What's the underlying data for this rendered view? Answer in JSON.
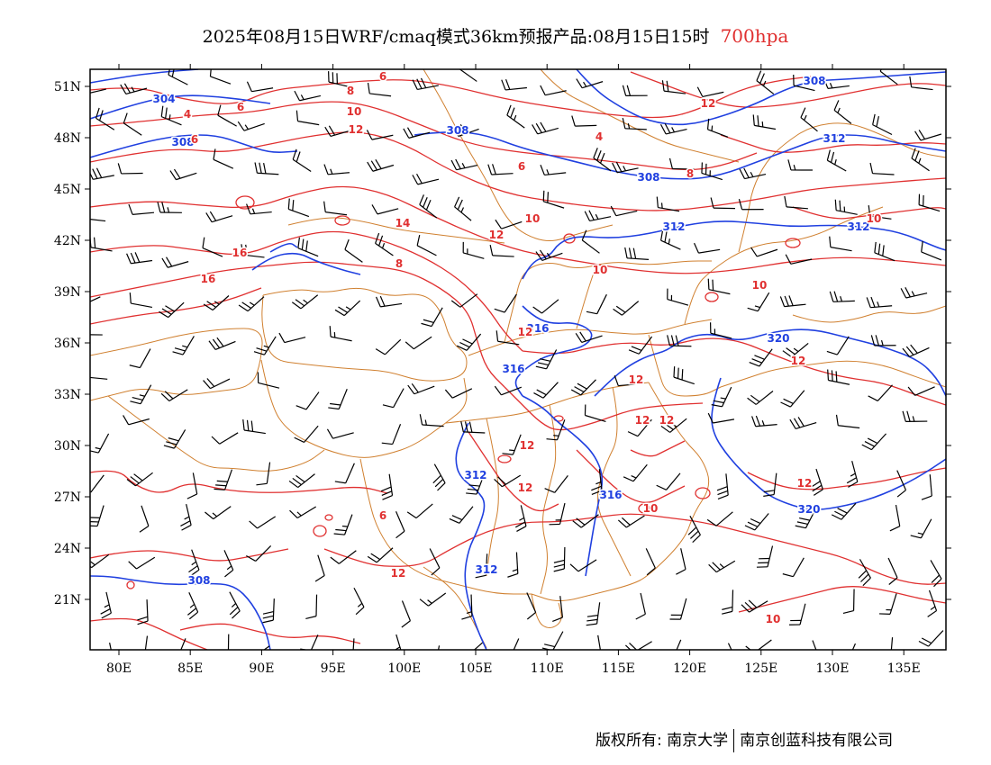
{
  "header": {
    "title": "2025年08月15日WRF/cmaq模式36km预报产品:08月15日15时",
    "level": "700hpa"
  },
  "axes": {
    "lat_labels": [
      "51N",
      "48N",
      "45N",
      "42N",
      "39N",
      "36N",
      "33N",
      "30N",
      "27N",
      "24N",
      "21N"
    ],
    "lon_labels": [
      "80E",
      "85E",
      "90E",
      "95E",
      "100E",
      "105E",
      "110E",
      "115E",
      "120E",
      "125E",
      "130E",
      "135E"
    ]
  },
  "colors": {
    "height_contour": "#2040e0",
    "temperature_contour": "#e03030",
    "boundary": "#d08030",
    "wind_barb": "#000000"
  },
  "height_labels": [
    "304",
    "308",
    "308",
    "308",
    "308",
    "312",
    "312",
    "312",
    "316",
    "316",
    "312",
    "312",
    "316",
    "320",
    "320",
    "308"
  ],
  "temperature_labels": [
    "6",
    "4",
    "6",
    "8",
    "10",
    "12",
    "14",
    "16",
    "16",
    "8",
    "6",
    "4",
    "6",
    "8",
    "10",
    "12",
    "10",
    "10",
    "12",
    "12",
    "12",
    "12",
    "12",
    "12",
    "12",
    "12",
    "10",
    "10",
    "12",
    "6",
    "10",
    "12"
  ],
  "footer": {
    "left": "版权所有: 南京大学",
    "right": "南京创蓝科技有限公司"
  }
}
